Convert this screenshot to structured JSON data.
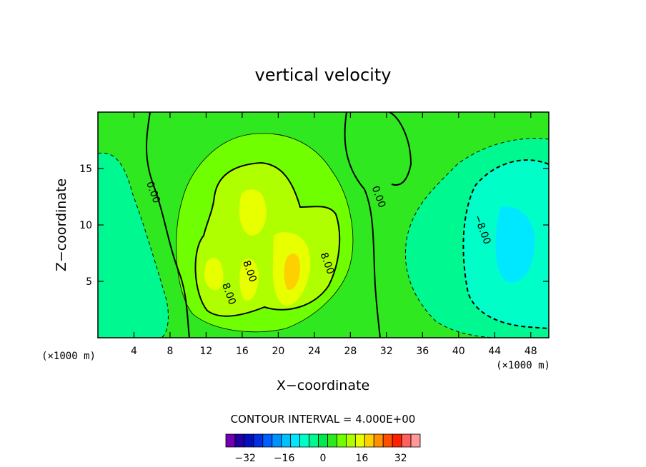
{
  "chart_data": {
    "type": "contour",
    "title": "vertical velocity",
    "xlabel": "X−coordinate",
    "ylabel": "Z−coordinate",
    "x_unit": "(×1000 m)",
    "y_unit": "(×1000 m)",
    "xlim": [
      0,
      50
    ],
    "ylim": [
      0,
      20
    ],
    "x_ticks": [
      4,
      8,
      12,
      16,
      20,
      24,
      28,
      32,
      36,
      40,
      44,
      48
    ],
    "x_tick_labels": [
      "4",
      "8",
      "12",
      "16",
      "20",
      "24",
      "28",
      "32",
      "36",
      "40",
      "44",
      "48"
    ],
    "y_ticks": [
      5,
      10,
      15
    ],
    "y_tick_labels": [
      "5",
      "10",
      "15"
    ],
    "contour_labels": [
      {
        "text": "0.00",
        "x": 5.8,
        "y": 12.8
      },
      {
        "text": "0.00",
        "x": 30.8,
        "y": 12.4
      },
      {
        "text": "8.00",
        "x": 14.2,
        "y": 3.8
      },
      {
        "text": "8.00",
        "x": 16.5,
        "y": 5.8
      },
      {
        "text": "8.00",
        "x": 25.1,
        "y": 6.5
      },
      {
        "text": "−8.00",
        "x": 42.3,
        "y": 9.5
      }
    ],
    "contour_interval_text": "CONTOUR INTERVAL = 4.000E+00",
    "colorbar": {
      "levels": [
        -36,
        -32,
        -28,
        -24,
        -20,
        -16,
        -12,
        -8,
        -4,
        0,
        4,
        8,
        12,
        16,
        20,
        24,
        28,
        32,
        36,
        40
      ],
      "colors": [
        "#7000b0",
        "#2000a0",
        "#0010c0",
        "#0030e0",
        "#0060ff",
        "#0090ff",
        "#00c0ff",
        "#00e8ff",
        "#00ffc8",
        "#00f890",
        "#00e850",
        "#30e820",
        "#70ff00",
        "#b0ff00",
        "#e8ff00",
        "#ffd000",
        "#ff9000",
        "#ff5000",
        "#ff2000",
        "#ff6060",
        "#ff9898"
      ],
      "tick_values": [
        -32,
        -16,
        0,
        16,
        32
      ],
      "tick_labels": [
        "−32",
        "−16",
        "0",
        "16",
        "32"
      ]
    },
    "field_colors": {
      "background": "#30e820",
      "neg4": "#00f890",
      "neg8": "#00ffc8",
      "neg12": "#00e8ff",
      "pos4": "#70ff00",
      "pos8": "#b0ff00",
      "pos12": "#e8ff00",
      "pos16": "#ffd000",
      "pos20": "#ff9000"
    },
    "grid": false,
    "legend": "bottom"
  }
}
